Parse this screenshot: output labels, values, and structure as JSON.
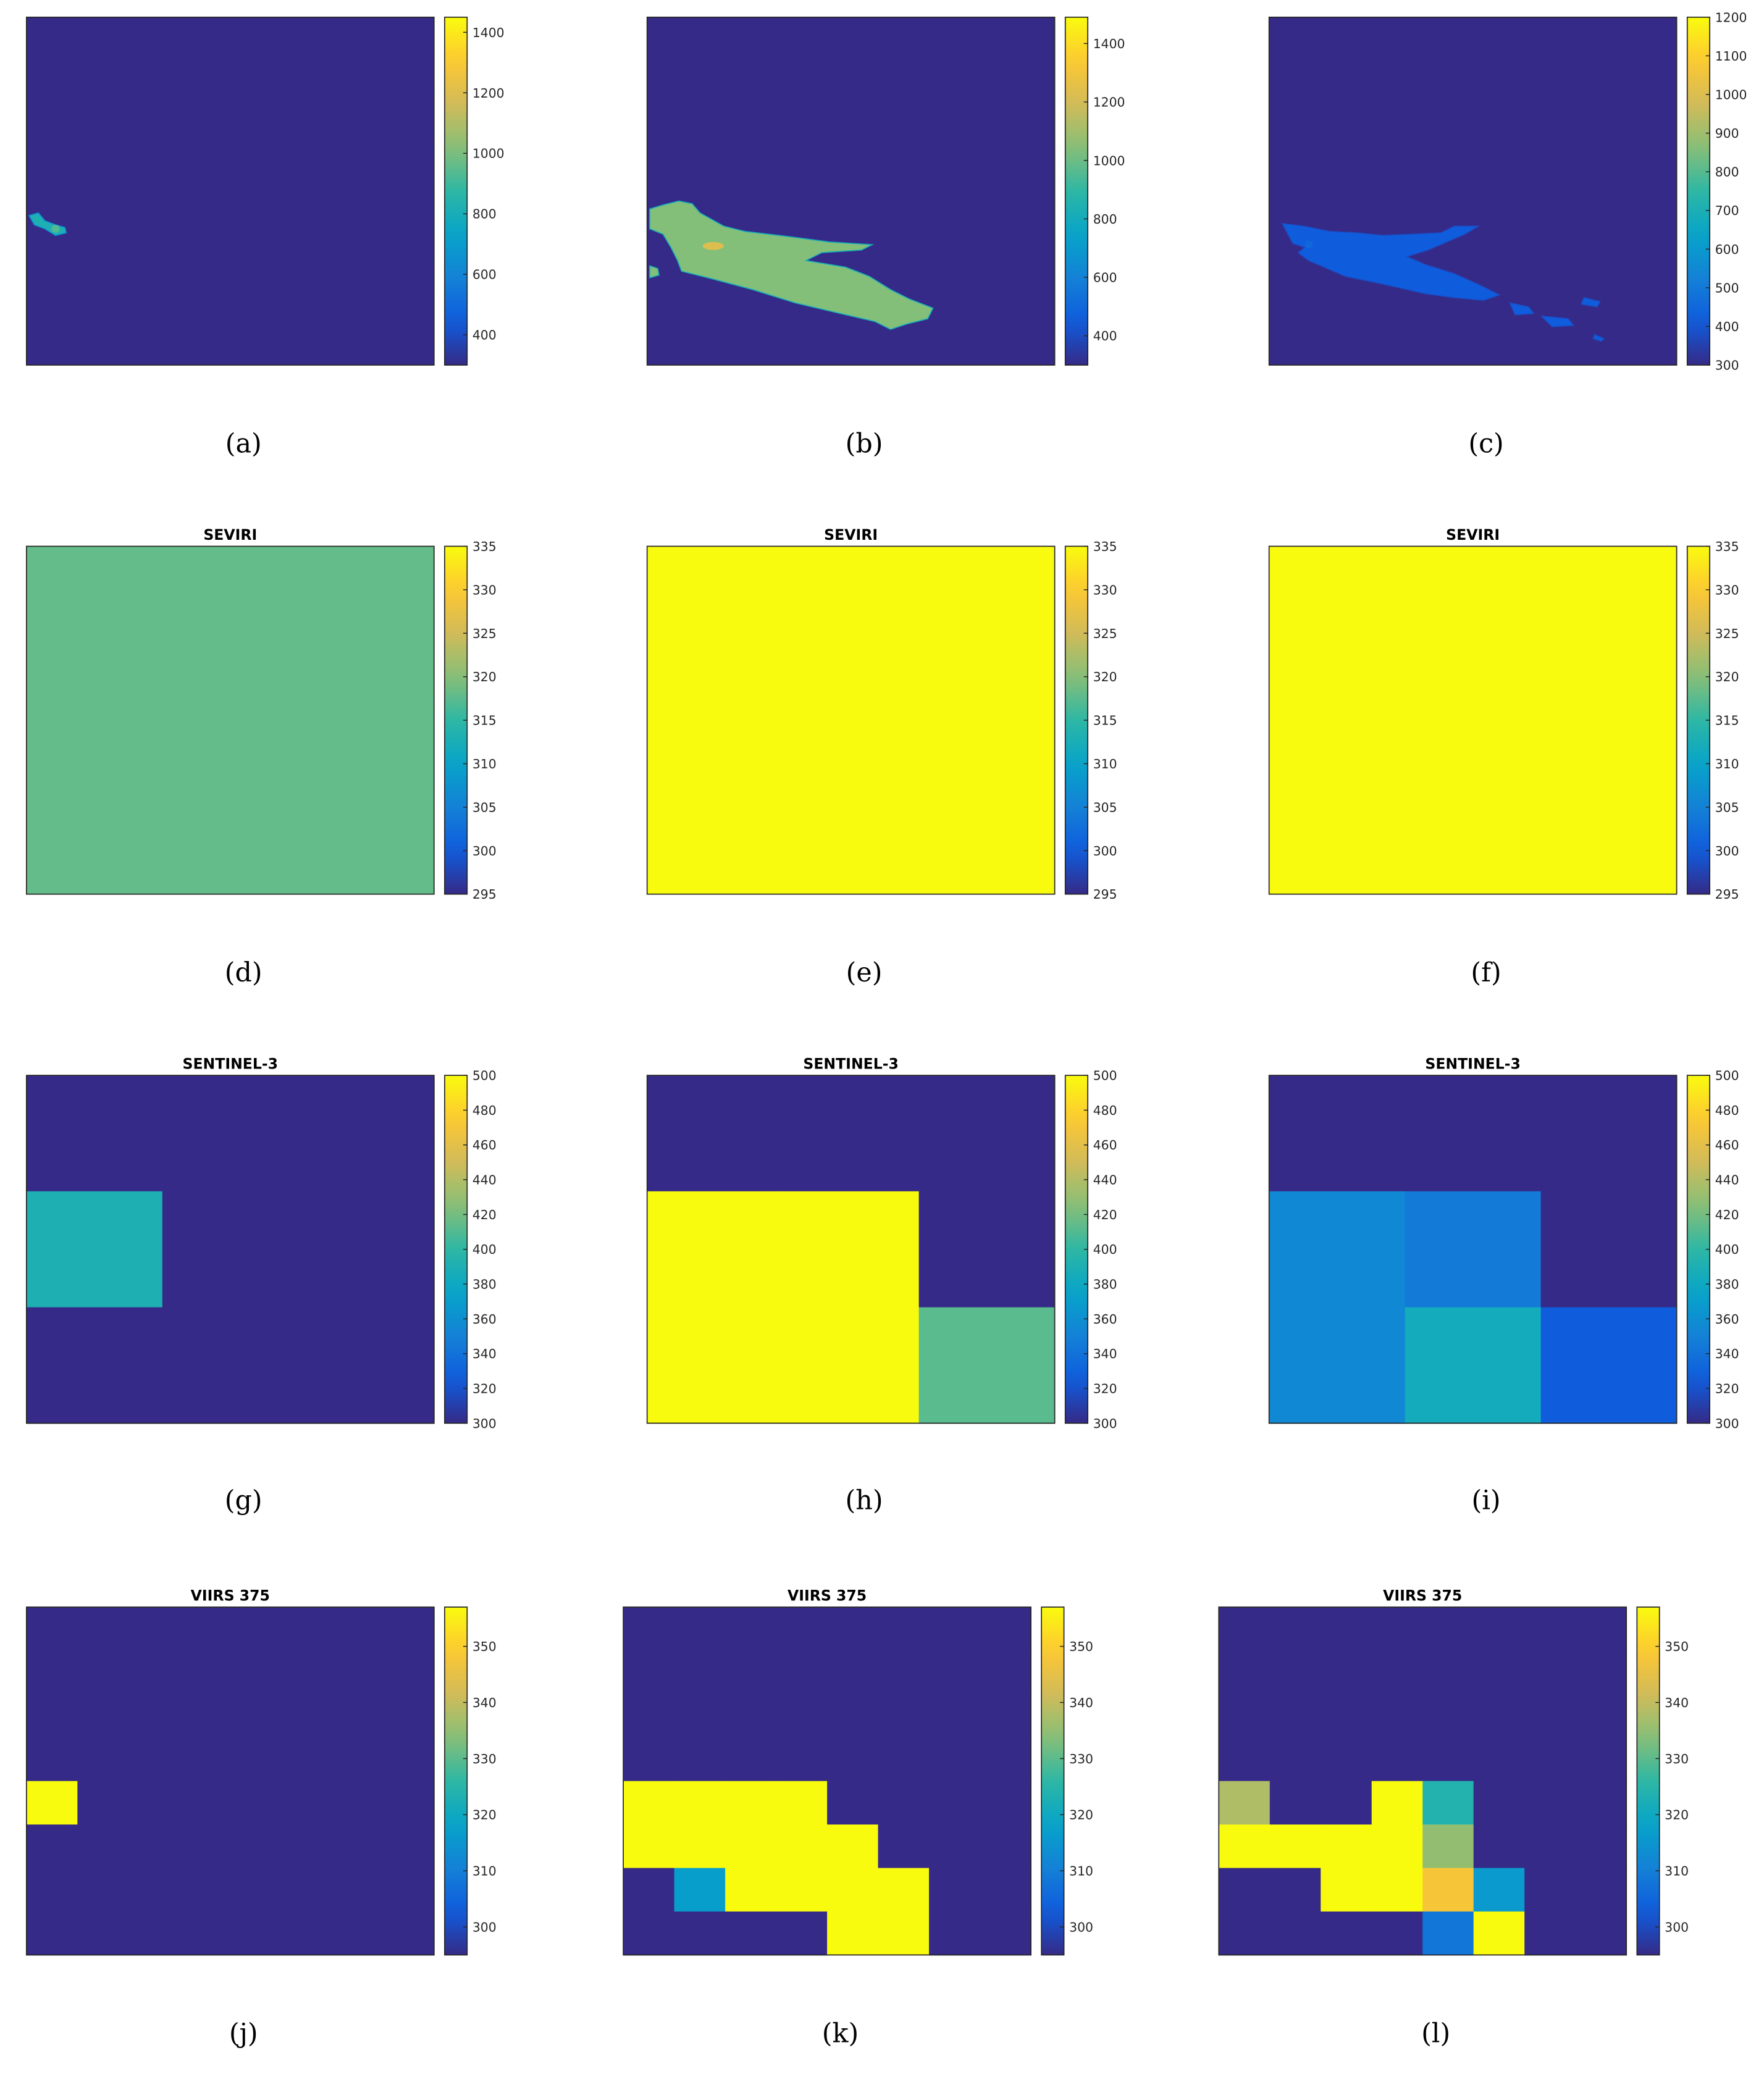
{
  "colormap": {
    "name": "parula",
    "stops": [
      "#352a87",
      "#0f5cdd",
      "#1481d6",
      "#06a4ca",
      "#2eb7a4",
      "#87bf77",
      "#d1bb59",
      "#fec832",
      "#f9fb0e"
    ]
  },
  "panel_labels": [
    "(a)",
    "(b)",
    "(c)",
    "(d)",
    "(e)",
    "(f)",
    "(g)",
    "(h)",
    "(i)",
    "(j)",
    "(k)",
    "(l)"
  ],
  "chart_data": [
    {
      "type": "heatmap",
      "label": "(a)",
      "title": "",
      "colorbar": {
        "range": [
          300,
          1450
        ],
        "ticks": [
          400,
          600,
          800,
          1000,
          1200,
          1400
        ]
      },
      "grid": null,
      "plume": {
        "level": 0.45,
        "highlight": 0.55
      }
    },
    {
      "type": "heatmap",
      "label": "(b)",
      "title": "",
      "colorbar": {
        "range": [
          300,
          1490
        ],
        "ticks": [
          400,
          600,
          800,
          1000,
          1200,
          1400
        ]
      },
      "grid": null,
      "plume": {
        "level": 0.62,
        "highlight": 0.78
      }
    },
    {
      "type": "heatmap",
      "label": "(c)",
      "title": "",
      "colorbar": {
        "range": [
          300,
          1200
        ],
        "ticks": [
          300,
          400,
          500,
          600,
          700,
          800,
          900,
          1000,
          1100,
          1200
        ]
      },
      "grid": null,
      "plume": {
        "level": 0.13,
        "highlight": 0.16
      }
    },
    {
      "type": "heatmap",
      "label": "(d)",
      "title": "SEVIRI",
      "colorbar": {
        "range": [
          295,
          335
        ],
        "ticks": [
          295,
          300,
          305,
          310,
          315,
          320,
          325,
          330,
          335
        ]
      },
      "grid": [
        [
          318
        ]
      ]
    },
    {
      "type": "heatmap",
      "label": "(e)",
      "title": "SEVIRI",
      "colorbar": {
        "range": [
          295,
          335
        ],
        "ticks": [
          295,
          300,
          305,
          310,
          315,
          320,
          325,
          330,
          335
        ]
      },
      "grid": [
        [
          335
        ]
      ]
    },
    {
      "type": "heatmap",
      "label": "(f)",
      "title": "SEVIRI",
      "colorbar": {
        "range": [
          295,
          335
        ],
        "ticks": [
          295,
          300,
          305,
          310,
          315,
          320,
          325,
          330,
          335
        ]
      },
      "grid": [
        [
          335
        ]
      ]
    },
    {
      "type": "heatmap",
      "label": "(g)",
      "title": "SENTINEL-3",
      "colorbar": {
        "range": [
          300,
          500
        ],
        "ticks": [
          300,
          320,
          340,
          360,
          380,
          400,
          420,
          440,
          460,
          480,
          500
        ]
      },
      "grid": [
        [
          300,
          300,
          300
        ],
        [
          390,
          300,
          300
        ],
        [
          300,
          300,
          300
        ]
      ]
    },
    {
      "type": "heatmap",
      "label": "(h)",
      "title": "SENTINEL-3",
      "colorbar": {
        "range": [
          300,
          500
        ],
        "ticks": [
          300,
          320,
          340,
          360,
          380,
          400,
          420,
          440,
          460,
          480,
          500
        ]
      },
      "grid": [
        [
          300,
          300,
          300
        ],
        [
          500,
          500,
          300
        ],
        [
          500,
          500,
          412
        ]
      ]
    },
    {
      "type": "heatmap",
      "label": "(i)",
      "title": "SENTINEL-3",
      "colorbar": {
        "range": [
          300,
          500
        ],
        "ticks": [
          300,
          320,
          340,
          360,
          380,
          400,
          420,
          440,
          460,
          480,
          500
        ]
      },
      "grid": [
        [
          300,
          300,
          300
        ],
        [
          355,
          345,
          300
        ],
        [
          355,
          384,
          325
        ]
      ]
    },
    {
      "type": "heatmap",
      "label": "(j)",
      "title": "VIIRS 375",
      "colorbar": {
        "range": [
          295,
          357
        ],
        "ticks": [
          300,
          310,
          320,
          330,
          340,
          350
        ]
      },
      "grid": [
        [
          295,
          295,
          295,
          295,
          295,
          295,
          295,
          295
        ],
        [
          295,
          295,
          295,
          295,
          295,
          295,
          295,
          295
        ],
        [
          295,
          295,
          295,
          295,
          295,
          295,
          295,
          295
        ],
        [
          295,
          295,
          295,
          295,
          295,
          295,
          295,
          295
        ],
        [
          357,
          295,
          295,
          295,
          295,
          295,
          295,
          295
        ],
        [
          295,
          295,
          295,
          295,
          295,
          295,
          295,
          295
        ],
        [
          295,
          295,
          295,
          295,
          295,
          295,
          295,
          295
        ],
        [
          295,
          295,
          295,
          295,
          295,
          295,
          295,
          295
        ]
      ]
    },
    {
      "type": "heatmap",
      "label": "(k)",
      "title": "VIIRS 375",
      "colorbar": {
        "range": [
          295,
          357
        ],
        "ticks": [
          300,
          310,
          320,
          330,
          340,
          350
        ]
      },
      "grid": [
        [
          295,
          295,
          295,
          295,
          295,
          295,
          295,
          295
        ],
        [
          295,
          295,
          295,
          295,
          295,
          295,
          295,
          295
        ],
        [
          295,
          295,
          295,
          295,
          295,
          295,
          295,
          295
        ],
        [
          295,
          295,
          295,
          295,
          295,
          295,
          295,
          295
        ],
        [
          357,
          357,
          357,
          357,
          295,
          295,
          295,
          295
        ],
        [
          357,
          357,
          357,
          357,
          357,
          295,
          295,
          295
        ],
        [
          295,
          317,
          357,
          357,
          357,
          357,
          295,
          295
        ],
        [
          295,
          295,
          295,
          295,
          357,
          357,
          295,
          295
        ]
      ]
    },
    {
      "type": "heatmap",
      "label": "(l)",
      "title": "VIIRS 375",
      "colorbar": {
        "range": [
          295,
          357
        ],
        "ticks": [
          300,
          310,
          320,
          330,
          340,
          350
        ]
      },
      "grid": [
        [
          295,
          295,
          295,
          295,
          295,
          295,
          295,
          295
        ],
        [
          295,
          295,
          295,
          295,
          295,
          295,
          295,
          295
        ],
        [
          295,
          295,
          295,
          295,
          295,
          295,
          295,
          295
        ],
        [
          295,
          295,
          295,
          295,
          295,
          295,
          295,
          295
        ],
        [
          338,
          295,
          295,
          357,
          324,
          295,
          295,
          295
        ],
        [
          357,
          357,
          357,
          357,
          335,
          295,
          295,
          295
        ],
        [
          295,
          295,
          357,
          357,
          348,
          316,
          295,
          295
        ],
        [
          295,
          295,
          295,
          295,
          308,
          357,
          295,
          295
        ]
      ]
    }
  ]
}
